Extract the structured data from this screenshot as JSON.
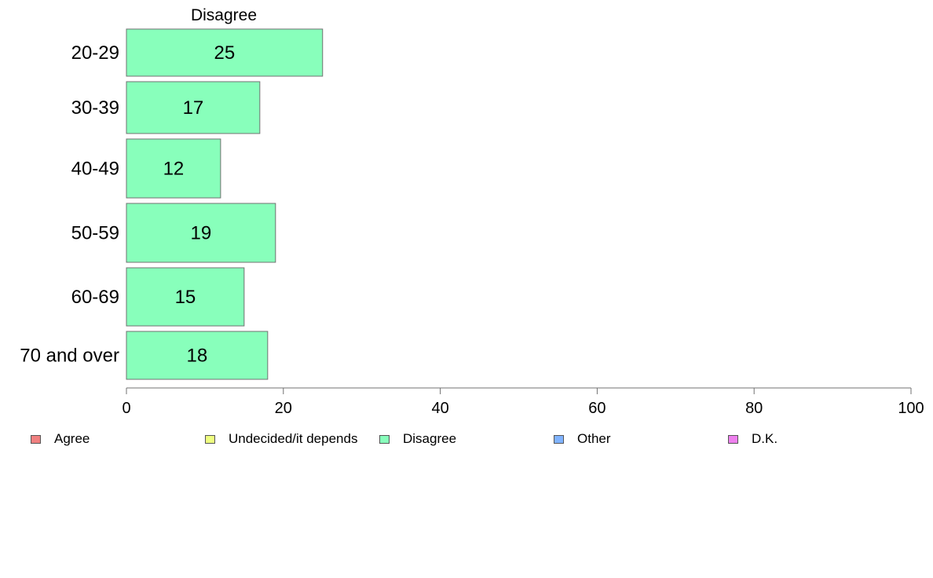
{
  "chart_data": {
    "type": "bar",
    "orientation": "horizontal",
    "title": "Disagree",
    "categories": [
      "20-29",
      "30-39",
      "40-49",
      "50-59",
      "60-69",
      "70 and over"
    ],
    "values": [
      25,
      17,
      12,
      19,
      15,
      18
    ],
    "xlim": [
      0,
      100
    ],
    "xticks": [
      0,
      20,
      40,
      60,
      80,
      100
    ],
    "xlabel": "",
    "ylabel": "",
    "grid": false,
    "legend_position": "bottom",
    "bar_color": "#88ffbb",
    "legend": [
      {
        "label": "Agree",
        "color": "#f08080"
      },
      {
        "label": "Undecided/it depends",
        "color": "#eeff80"
      },
      {
        "label": "Disagree",
        "color": "#88ffbb"
      },
      {
        "label": "Other",
        "color": "#80b3ff"
      },
      {
        "label": "D.K.",
        "color": "#ee80ee"
      }
    ]
  }
}
